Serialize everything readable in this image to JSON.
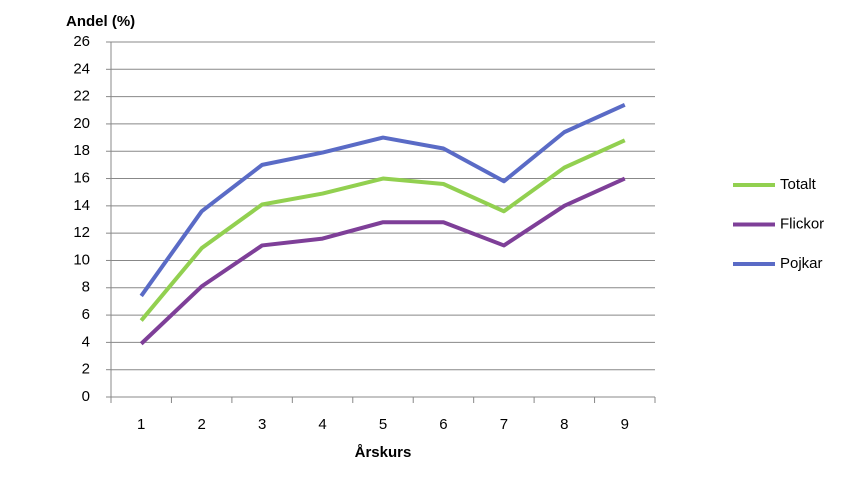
{
  "chart_data": {
    "type": "line",
    "y_label": "Andel (%)",
    "x_label": "Årskurs",
    "categories": [
      "1",
      "2",
      "3",
      "4",
      "5",
      "6",
      "7",
      "8",
      "9"
    ],
    "series": [
      {
        "name": "Totalt",
        "color": "#92d050",
        "values": [
          5.6,
          10.9,
          14.1,
          14.9,
          16.0,
          15.6,
          13.6,
          16.8,
          18.8
        ]
      },
      {
        "name": "Flickor",
        "color": "#7e3f98",
        "values": [
          3.9,
          8.1,
          11.1,
          11.6,
          12.8,
          12.8,
          11.1,
          14.0,
          16.0
        ]
      },
      {
        "name": "Pojkar",
        "color": "#5a6bc6",
        "values": [
          7.4,
          13.6,
          17.0,
          17.9,
          19.0,
          18.2,
          15.8,
          19.4,
          21.4
        ]
      }
    ],
    "ylim": [
      0,
      26
    ],
    "yticks": [
      0,
      2,
      4,
      6,
      8,
      10,
      12,
      14,
      16,
      18,
      20,
      22,
      24,
      26
    ],
    "grid": true
  }
}
